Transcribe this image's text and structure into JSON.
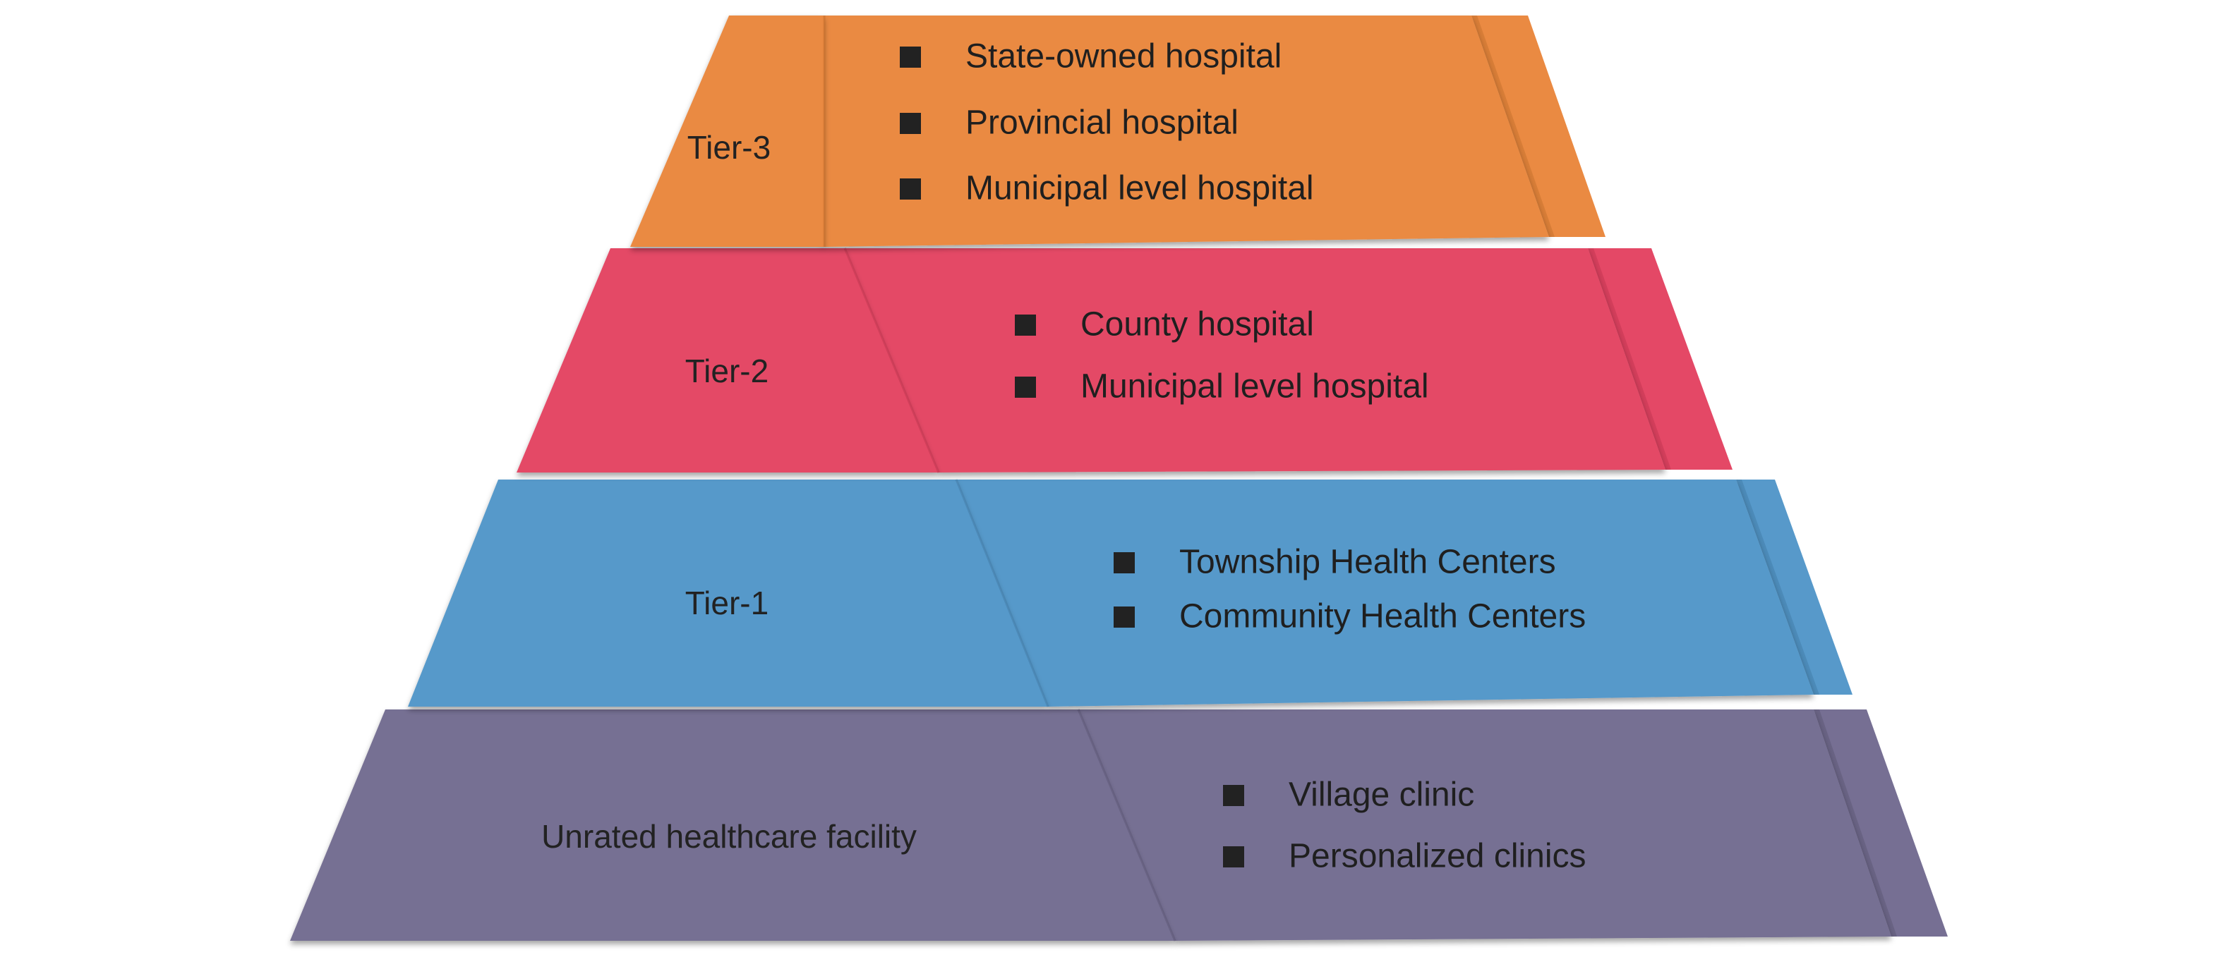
{
  "tiers": [
    {
      "label": "Tier-3",
      "color": "#EA8A42",
      "color_dark": "#C9722F",
      "items": [
        "State-owned hospital",
        "Provincial hospital",
        "Municipal level hospital"
      ]
    },
    {
      "label": "Tier-2",
      "color": "#E44866",
      "color_dark": "#C53752",
      "items": [
        "County hospital",
        "Municipal level hospital"
      ]
    },
    {
      "label": "Tier-1",
      "color": "#5799CA",
      "color_dark": "#447FAC",
      "items": [
        "Township Health Centers",
        "Community Health Centers"
      ]
    },
    {
      "label": "Unrated healthcare facility",
      "color": "#766F93",
      "color_dark": "#5F5979",
      "items": [
        "Village clinic",
        "Personalized clinics"
      ]
    }
  ]
}
